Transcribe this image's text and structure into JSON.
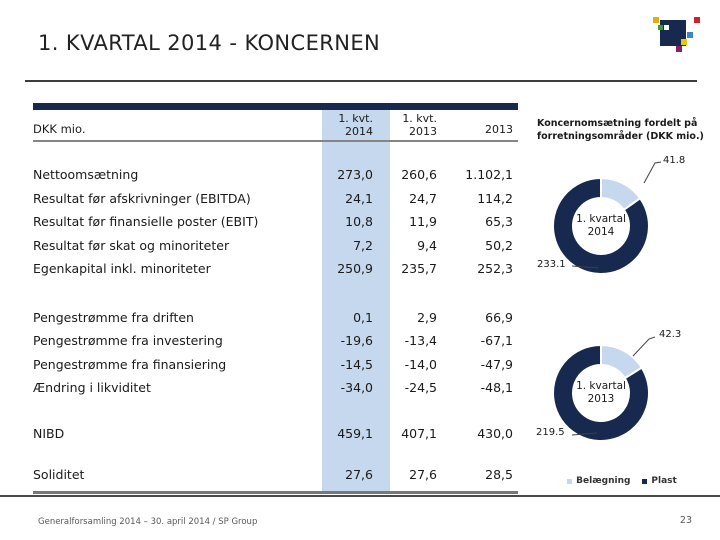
{
  "slide": {
    "title": "1. KVARTAL 2014 - KONCERNEN",
    "footer_left": "Generalforsamling 2014 – 30. april 2014 / SP Group",
    "page_number": "23"
  },
  "colors": {
    "brand_navy": "#17294e",
    "highlight_light_blue": "#c5d8ee",
    "table_rule_gray": "#787878",
    "footer_text_gray": "#595959",
    "logo": [
      "#17294e",
      "#e3ae09",
      "#3f9c35",
      "#ffffff",
      "#cc2229",
      "#3d85c8",
      "#edc500",
      "#8b1f63"
    ]
  },
  "table": {
    "unit_label": "DKK mio.",
    "col_headers": [
      {
        "line1": "1. kvt.",
        "line2": "2014"
      },
      {
        "line1": "1. kvt.",
        "line2": "2013"
      },
      {
        "line1": "",
        "line2": "2013"
      }
    ],
    "groups": [
      {
        "rows": [
          {
            "label": "Nettoomsætning",
            "q1_2014": "273,0",
            "q1_2013": "260,6",
            "fy_2013": "1.102,1"
          },
          {
            "label": "Resultat før afskrivninger (EBITDA)",
            "q1_2014": "24,1",
            "q1_2013": "24,7",
            "fy_2013": "114,2"
          },
          {
            "label": "Resultat før finansielle poster (EBIT)",
            "q1_2014": "10,8",
            "q1_2013": "11,9",
            "fy_2013": "65,3"
          },
          {
            "label": "Resultat før skat og minoriteter",
            "q1_2014": "7,2",
            "q1_2013": "9,4",
            "fy_2013": "50,2"
          },
          {
            "label": "Egenkapital inkl. minoriteter",
            "q1_2014": "250,9",
            "q1_2013": "235,7",
            "fy_2013": "252,3"
          }
        ]
      },
      {
        "rows": [
          {
            "label": "Pengestrømme fra driften",
            "q1_2014": "0,1",
            "q1_2013": "2,9",
            "fy_2013": "66,9"
          },
          {
            "label": "Pengestrømme fra investering",
            "q1_2014": "-19,6",
            "q1_2013": "-13,4",
            "fy_2013": "-67,1"
          },
          {
            "label": "Pengestrømme fra finansiering",
            "q1_2014": "-14,5",
            "q1_2013": "-14,0",
            "fy_2013": "-47,9"
          },
          {
            "label": "Ændring i likviditet",
            "q1_2014": "-34,0",
            "q1_2013": "-24,5",
            "fy_2013": "-48,1"
          }
        ]
      },
      {
        "rows": [
          {
            "label": "NIBD",
            "q1_2014": "459,1",
            "q1_2013": "407,1",
            "fy_2013": "430,0"
          }
        ]
      },
      {
        "rows": [
          {
            "label": "Soliditet",
            "q1_2014": "27,6",
            "q1_2013": "27,6",
            "fy_2013": "28,5"
          }
        ]
      }
    ]
  },
  "chart": {
    "title_line1": "Koncernomsætning fordelt på",
    "title_line2": "forretningsområder (DKK mio.)"
  },
  "chart_data": [
    {
      "type": "pie",
      "subtype": "donut",
      "title": "1. kvartal 2014",
      "center_label": [
        "1. kvartal",
        "2014"
      ],
      "labels": [
        "Belægning",
        "Plast"
      ],
      "values": [
        41.8,
        233.1
      ],
      "colors": [
        "#c5d8ee",
        "#17294e"
      ],
      "start_angle_deg": 0,
      "direction": "clockwise",
      "legend_position": "none"
    },
    {
      "type": "pie",
      "subtype": "donut",
      "title": "1. kvartal 2013",
      "center_label": [
        "1. kvartal",
        "2013"
      ],
      "labels": [
        "Belægning",
        "Plast"
      ],
      "values": [
        42.3,
        219.5
      ],
      "colors": [
        "#c5d8ee",
        "#17294e"
      ],
      "start_angle_deg": 0,
      "direction": "clockwise",
      "legend_position": "bottom"
    }
  ],
  "legend": {
    "items": [
      {
        "label": "Belægning",
        "color": "#c5d8ee"
      },
      {
        "label": "Plast",
        "color": "#17294e"
      }
    ]
  }
}
